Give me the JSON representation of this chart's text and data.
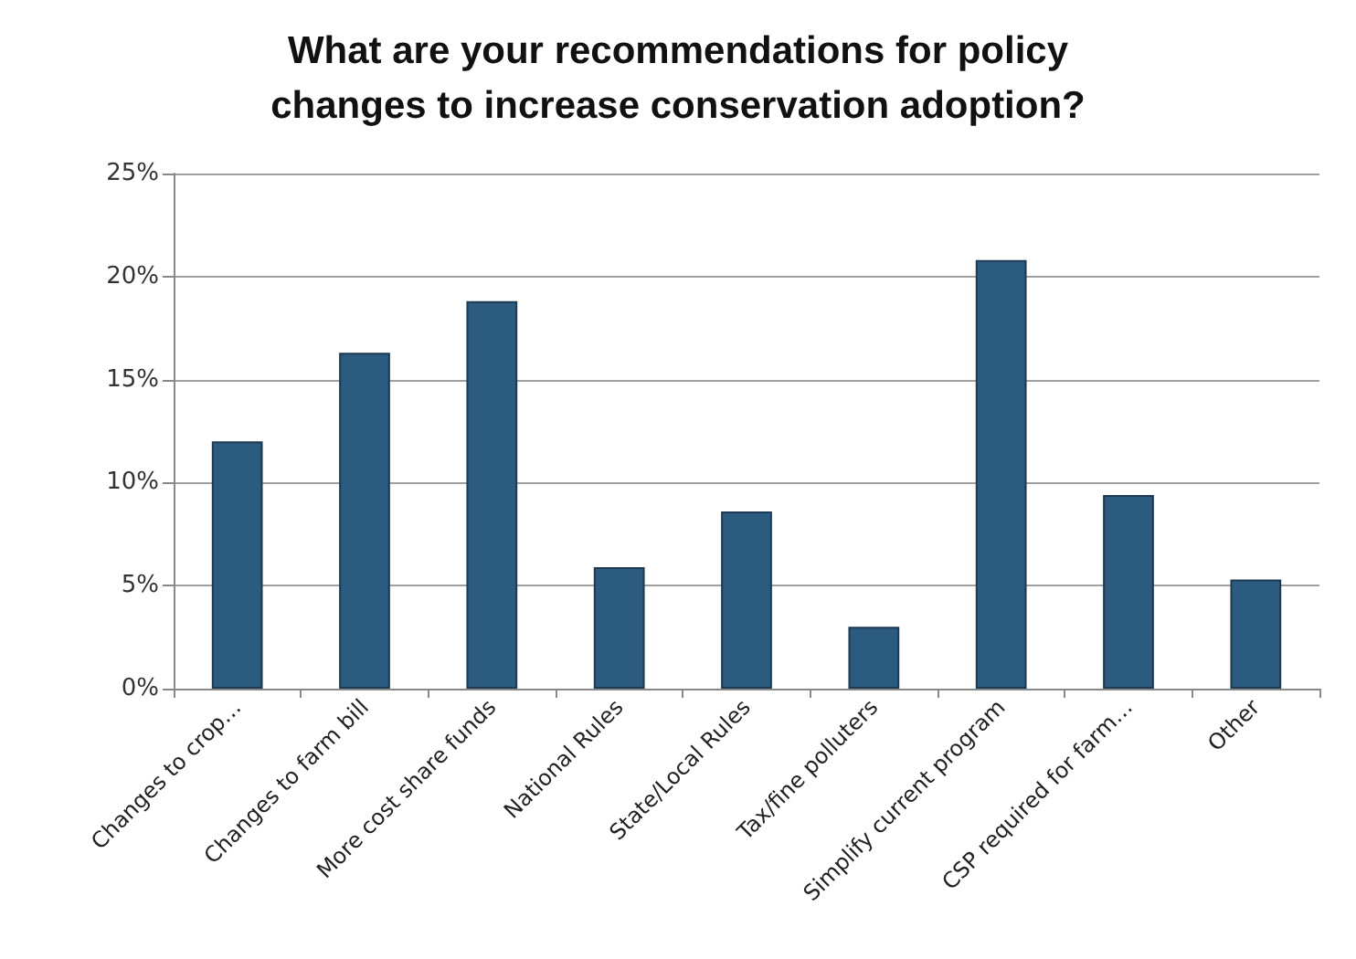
{
  "chart_data": {
    "type": "bar",
    "title": "What are your recommendations for policy\nchanges to increase conservation adoption?",
    "categories": [
      "Changes to crop…",
      "Changes to farm bill",
      "More cost share funds",
      "National Rules",
      "State/Local Rules",
      "Tax/fine polluters",
      "Simplify current program",
      "CSP required for farm…",
      "Other"
    ],
    "values": [
      12,
      16.3,
      18.8,
      5.9,
      8.6,
      3,
      20.8,
      9.4,
      5.3
    ],
    "color": "#2b5b7f",
    "ylim": [
      0,
      25
    ],
    "yticks": [
      {
        "value": 0,
        "label": "0%"
      },
      {
        "value": 5,
        "label": "5%"
      },
      {
        "value": 10,
        "label": "10%"
      },
      {
        "value": 15,
        "label": "15%"
      },
      {
        "value": 20,
        "label": "20%"
      },
      {
        "value": 25,
        "label": "25%"
      }
    ],
    "grid": "y"
  }
}
